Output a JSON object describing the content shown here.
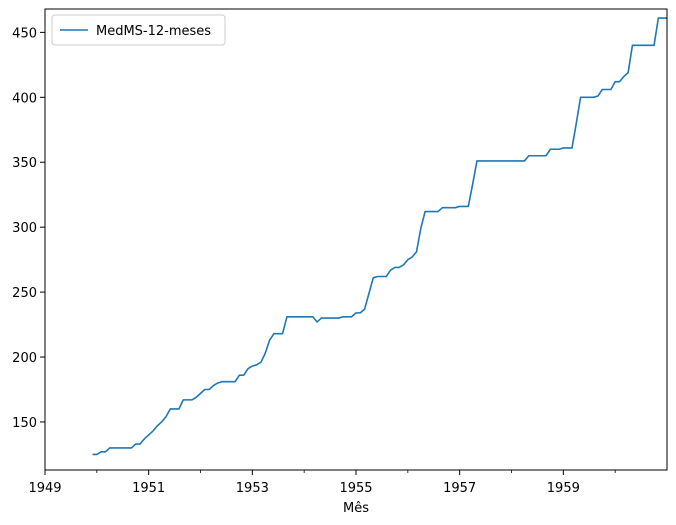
{
  "chart_data": {
    "type": "line",
    "title": "",
    "xlabel": "Mês",
    "ylabel": "",
    "xlim": [
      1949.0,
      1961.0
    ],
    "ylim": [
      113,
      468
    ],
    "x_major_ticks": [
      1949,
      1951,
      1953,
      1955,
      1957,
      1959
    ],
    "x_minor_ticks": [
      1950,
      1952,
      1954,
      1956,
      1958,
      1960
    ],
    "y_ticks": [
      150,
      200,
      250,
      300,
      350,
      400,
      450
    ],
    "grid": false,
    "legend_position": "top-left",
    "series": [
      {
        "name": "MedMS-12-meses",
        "color": "#1f77b4",
        "x": [
          1949.917,
          1950.0,
          1950.083,
          1950.167,
          1950.25,
          1950.333,
          1950.417,
          1950.5,
          1950.583,
          1950.667,
          1950.75,
          1950.833,
          1950.917,
          1951.0,
          1951.083,
          1951.167,
          1951.25,
          1951.333,
          1951.417,
          1951.5,
          1951.583,
          1951.667,
          1951.75,
          1951.833,
          1951.917,
          1952.0,
          1952.083,
          1952.167,
          1952.25,
          1952.333,
          1952.417,
          1952.5,
          1952.583,
          1952.667,
          1952.75,
          1952.833,
          1952.917,
          1953.0,
          1953.083,
          1953.167,
          1953.25,
          1953.333,
          1953.417,
          1953.5,
          1953.583,
          1953.667,
          1953.75,
          1953.833,
          1953.917,
          1954.0,
          1954.083,
          1954.167,
          1954.25,
          1954.333,
          1954.417,
          1954.5,
          1954.583,
          1954.667,
          1954.75,
          1954.833,
          1954.917,
          1955.0,
          1955.083,
          1955.167,
          1955.25,
          1955.333,
          1955.417,
          1955.5,
          1955.583,
          1955.667,
          1955.75,
          1955.833,
          1955.917,
          1956.0,
          1956.083,
          1956.167,
          1956.25,
          1956.333,
          1956.417,
          1956.5,
          1956.583,
          1956.667,
          1956.75,
          1956.833,
          1956.917,
          1957.0,
          1957.083,
          1957.167,
          1957.25,
          1957.333,
          1957.417,
          1957.5,
          1957.583,
          1957.667,
          1957.75,
          1957.833,
          1957.917,
          1958.0,
          1958.083,
          1958.167,
          1958.25,
          1958.333,
          1958.417,
          1958.5,
          1958.583,
          1958.667,
          1958.75,
          1958.833,
          1958.917,
          1959.0,
          1959.083,
          1959.167,
          1959.25,
          1959.333,
          1959.417,
          1959.5,
          1959.583,
          1959.667,
          1959.75,
          1959.833,
          1959.917,
          1960.0,
          1960.083,
          1960.167,
          1960.25,
          1960.333,
          1960.417,
          1960.5,
          1960.583,
          1960.667,
          1960.75,
          1960.833,
          1960.917,
          1961.0
        ],
        "values": [
          125,
          125,
          127,
          127,
          130,
          130,
          130,
          130,
          130,
          130,
          133,
          133,
          137,
          140,
          143,
          147,
          150,
          154,
          160,
          160,
          160,
          167,
          167,
          167,
          169,
          172,
          175,
          175,
          178,
          180,
          181,
          181,
          181,
          181,
          186,
          186,
          191,
          193,
          194,
          196,
          203,
          213,
          218,
          218,
          218,
          231,
          231,
          231,
          231,
          231,
          231,
          231,
          227,
          230,
          230,
          230,
          230,
          230,
          231,
          231,
          231,
          234,
          234,
          237,
          249,
          261,
          262,
          262,
          262,
          267,
          269,
          269,
          271,
          275,
          277,
          281,
          299,
          312,
          312,
          312,
          312,
          315,
          315,
          315,
          315,
          316,
          316,
          316,
          333,
          351,
          351,
          351,
          351,
          351,
          351,
          351,
          351,
          351,
          351,
          351,
          351,
          355,
          355,
          355,
          355,
          355,
          360,
          360,
          360,
          361,
          361,
          361,
          380,
          400,
          400,
          400,
          400,
          401,
          406,
          406,
          406,
          412,
          412,
          416,
          419,
          440,
          440,
          440,
          440,
          440,
          440,
          461,
          461,
          461
        ]
      }
    ]
  }
}
